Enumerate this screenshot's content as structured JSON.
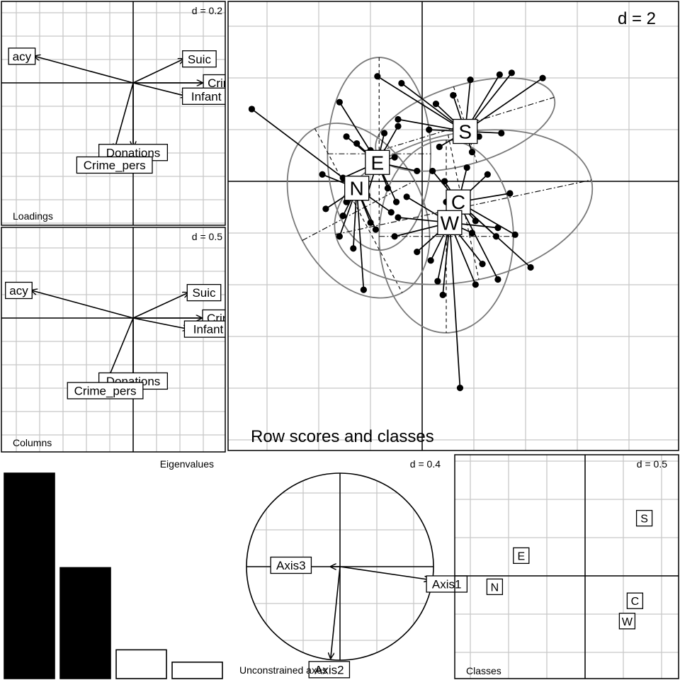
{
  "panels": {
    "loadings": {
      "title": "Loadings",
      "d_label": "d = 0.2",
      "labels": [
        "acy",
        "Suic",
        "Crime",
        "Infant",
        "Donations",
        "Crime_pers"
      ]
    },
    "columns": {
      "title": "Columns",
      "d_label": "d = 0.5",
      "labels": [
        "acy",
        "Suic",
        "Crime",
        "Infant",
        "Donations",
        "Crime_pers"
      ]
    },
    "rows": {
      "title": "Row scores and classes",
      "d_label": "d = 2",
      "class_labels": [
        "S",
        "E",
        "N",
        "C",
        "W"
      ]
    },
    "eigen": {
      "title": "Eigenvalues",
      "values": [
        1.0,
        0.54,
        0.14,
        0.08
      ],
      "fills": [
        "#000000",
        "#000000",
        "#ffffff",
        "#ffffff"
      ]
    },
    "unconstrained": {
      "title": "Unconstrained axes",
      "d_label": "d = 0.4",
      "labels": [
        "Axis3",
        "Axis1",
        "Axis2"
      ]
    },
    "classes": {
      "title": "Classes",
      "d_label": "d = 0.5",
      "labels": [
        "S",
        "E",
        "N",
        "C",
        "W"
      ]
    }
  },
  "chart_data": [
    {
      "type": "scatter",
      "title": "Loadings",
      "scale_label": "d = 0.2",
      "arrows": [
        {
          "label": "acy",
          "x": -0.74,
          "y": 0.2
        },
        {
          "label": "Suic",
          "x": 0.38,
          "y": 0.18
        },
        {
          "label": "Crime",
          "x": 0.52,
          "y": 0.0
        },
        {
          "label": "Infant",
          "x": 0.4,
          "y": -0.1
        },
        {
          "label": "Donations",
          "x": 0.0,
          "y": -0.48
        },
        {
          "label": "Crime_pers",
          "x": -0.14,
          "y": -0.5
        }
      ]
    },
    {
      "type": "scatter",
      "title": "Columns",
      "scale_label": "d = 0.5",
      "arrows": [
        {
          "label": "acy",
          "x": -1.84,
          "y": 0.5
        },
        {
          "label": "Suic",
          "x": 1.0,
          "y": 0.46
        },
        {
          "label": "Crime",
          "x": 1.24,
          "y": 0.0
        },
        {
          "label": "Infant",
          "x": 1.0,
          "y": -0.2
        },
        {
          "label": "Donations",
          "x": 0.0,
          "y": -1.14
        },
        {
          "label": "Crime_pers",
          "x": -0.48,
          "y": -1.16
        }
      ]
    },
    {
      "type": "scatter",
      "title": "Row scores and classes",
      "scale_label": "d = 2",
      "classes": [
        {
          "label": "S",
          "x": 2.5,
          "y": 2.9
        },
        {
          "label": "E",
          "x": -2.6,
          "y": 1.1
        },
        {
          "label": "N",
          "x": -3.8,
          "y": -0.4
        },
        {
          "label": "C",
          "x": 2.1,
          "y": -1.2
        },
        {
          "label": "W",
          "x": 1.6,
          "y": -2.4
        }
      ],
      "points": {
        "S": [
          [
            -2.6,
            6.1
          ],
          [
            -1.2,
            5.7
          ],
          [
            2.8,
            5.9
          ],
          [
            4.5,
            6.2
          ],
          [
            5.2,
            6.3
          ],
          [
            7.0,
            6.0
          ],
          [
            1.8,
            5.0
          ],
          [
            0.8,
            4.5
          ],
          [
            -1.4,
            3.6
          ],
          [
            0.4,
            3.0
          ],
          [
            3.3,
            2.6
          ],
          [
            4.6,
            2.8
          ],
          [
            2.9,
            1.7
          ],
          [
            1.0,
            2.0
          ],
          [
            2.0,
            2.5
          ]
        ],
        "E": [
          [
            -4.8,
            4.6
          ],
          [
            -4.4,
            2.6
          ],
          [
            -3.8,
            2.2
          ],
          [
            -3.0,
            1.8
          ],
          [
            -2.2,
            2.8
          ],
          [
            -1.6,
            1.4
          ],
          [
            -0.3,
            0.6
          ],
          [
            -2.0,
            -0.4
          ],
          [
            -3.2,
            -0.8
          ],
          [
            -1.5,
            -1.2
          ],
          [
            -4.6,
            0.2
          ],
          [
            -1.4,
            3.2
          ]
        ],
        "N": [
          [
            -9.9,
            4.2
          ],
          [
            -5.6,
            -1.6
          ],
          [
            -5.8,
            0.4
          ],
          [
            -4.6,
            -2.0
          ],
          [
            -4.8,
            -3.2
          ],
          [
            -4.0,
            -3.9
          ],
          [
            -3.4,
            -6.3
          ],
          [
            -3.0,
            -2.4
          ],
          [
            -1.8,
            -1.8
          ],
          [
            -2.7,
            -2.8
          ],
          [
            -4.4,
            -1.2
          ]
        ],
        "C": [
          [
            0.6,
            0.6
          ],
          [
            1.4,
            -1.2
          ],
          [
            3.8,
            0.4
          ],
          [
            5.1,
            -0.7
          ],
          [
            4.3,
            -3.2
          ],
          [
            5.4,
            -3.1
          ],
          [
            4.4,
            -5.7
          ],
          [
            6.3,
            -5.0
          ],
          [
            3.1,
            -2.3
          ],
          [
            2.6,
            0.8
          ],
          [
            1.3,
            0.0
          ]
        ],
        "W": [
          [
            -0.3,
            -4.1
          ],
          [
            0.5,
            -4.6
          ],
          [
            -1.6,
            -3.2
          ],
          [
            -1.4,
            -2.1
          ],
          [
            0.9,
            -5.8
          ],
          [
            1.2,
            -6.6
          ],
          [
            2.2,
            -12.0
          ],
          [
            2.9,
            -3.0
          ],
          [
            3.5,
            -4.8
          ],
          [
            3.1,
            -6.0
          ],
          [
            -0.9,
            -0.9
          ],
          [
            4.4,
            -2.7
          ],
          [
            1.6,
            -1.3
          ]
        ]
      },
      "ellipses": [
        {
          "class": "S",
          "cx": 2.5,
          "cy": 3.3,
          "rx": 5.4,
          "ry": 2.3,
          "angle": -17
        },
        {
          "class": "E",
          "cx": -2.5,
          "cy": 1.6,
          "rx": 3.0,
          "ry": 5.6,
          "angle": 0
        },
        {
          "class": "N",
          "cx": -3.7,
          "cy": -1.7,
          "rx": 3.7,
          "ry": 5.4,
          "angle": -28
        },
        {
          "class": "C",
          "cx": 2.4,
          "cy": -1.5,
          "rx": 7.6,
          "ry": 4.3,
          "angle": -12
        },
        {
          "class": "W",
          "cx": 1.4,
          "cy": -3.2,
          "rx": 3.9,
          "ry": 5.6,
          "angle": 0
        }
      ]
    },
    {
      "type": "bar",
      "title": "Eigenvalues",
      "categories": [
        "1",
        "2",
        "3",
        "4"
      ],
      "values": [
        1.0,
        0.54,
        0.14,
        0.08
      ]
    },
    {
      "type": "scatter",
      "title": "Unconstrained axes",
      "scale_label": "d = 0.4",
      "arrows": [
        {
          "label": "Axis1",
          "x": 0.96,
          "y": -0.14
        },
        {
          "label": "Axis2",
          "x": -0.1,
          "y": -0.98
        },
        {
          "label": "Axis3",
          "x": -0.1,
          "y": 0.0
        }
      ]
    },
    {
      "type": "scatter",
      "title": "Classes",
      "scale_label": "d = 0.5",
      "points": [
        {
          "label": "S",
          "x": 0.76,
          "y": 0.74
        },
        {
          "label": "E",
          "x": -0.82,
          "y": 0.26
        },
        {
          "label": "N",
          "x": -1.16,
          "y": -0.14
        },
        {
          "label": "C",
          "x": 0.64,
          "y": -0.32
        },
        {
          "label": "W",
          "x": 0.54,
          "y": -0.58
        }
      ]
    }
  ]
}
